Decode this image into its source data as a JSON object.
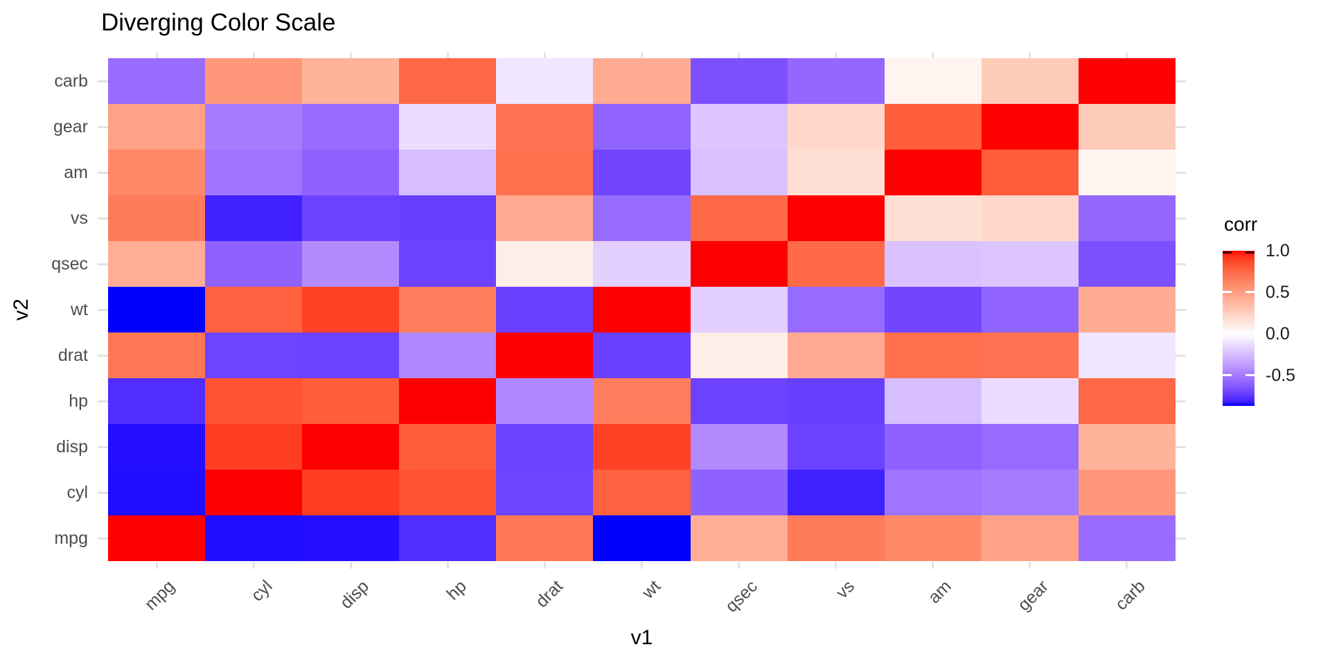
{
  "chart_data": {
    "type": "heatmap",
    "title": "Diverging Color Scale",
    "xlabel": "v1",
    "ylabel": "v2",
    "x_categories": [
      "mpg",
      "cyl",
      "disp",
      "hp",
      "drat",
      "wt",
      "qsec",
      "vs",
      "am",
      "gear",
      "carb"
    ],
    "y_categories_bottom_to_top": [
      "mpg",
      "cyl",
      "disp",
      "hp",
      "drat",
      "wt",
      "qsec",
      "vs",
      "am",
      "gear",
      "carb"
    ],
    "matrix_rows_bottom_to_top": [
      [
        1,
        -0.852,
        -0.848,
        -0.776,
        0.681,
        -0.868,
        0.419,
        0.664,
        0.6,
        0.48,
        -0.551
      ],
      [
        -0.852,
        1,
        0.902,
        0.832,
        -0.7,
        0.782,
        -0.591,
        -0.811,
        -0.523,
        -0.493,
        0.527
      ],
      [
        -0.848,
        0.902,
        1,
        0.791,
        -0.71,
        0.888,
        -0.434,
        -0.71,
        -0.591,
        -0.556,
        0.395
      ],
      [
        -0.776,
        0.832,
        0.791,
        1,
        -0.449,
        0.659,
        -0.708,
        -0.723,
        -0.243,
        -0.126,
        0.75
      ],
      [
        0.681,
        -0.7,
        -0.71,
        -0.449,
        1,
        -0.712,
        0.091,
        0.44,
        0.713,
        0.7,
        -0.091
      ],
      [
        -0.868,
        0.782,
        0.888,
        0.659,
        -0.712,
        1,
        -0.175,
        -0.555,
        -0.692,
        -0.583,
        0.428
      ],
      [
        0.419,
        -0.591,
        -0.434,
        -0.708,
        0.091,
        -0.175,
        1,
        0.745,
        -0.23,
        -0.213,
        -0.656
      ],
      [
        0.664,
        -0.811,
        -0.71,
        -0.723,
        0.44,
        -0.555,
        0.745,
        1,
        0.168,
        0.206,
        -0.57
      ],
      [
        0.6,
        -0.523,
        -0.591,
        -0.243,
        0.713,
        -0.692,
        -0.23,
        0.168,
        1,
        0.794,
        0.058
      ],
      [
        0.48,
        -0.493,
        -0.556,
        -0.126,
        0.7,
        -0.583,
        -0.213,
        0.206,
        0.794,
        1,
        0.274
      ],
      [
        -0.551,
        0.527,
        0.395,
        0.75,
        -0.091,
        0.428,
        -0.656,
        -0.57,
        0.058,
        0.274,
        1
      ]
    ],
    "legend_title": "corr",
    "legend_ticks": [
      {
        "label": "1.0",
        "value": 1.0
      },
      {
        "label": "0.5",
        "value": 0.5
      },
      {
        "label": "0.0",
        "value": 0.0
      },
      {
        "label": "-0.5",
        "value": -0.5
      }
    ],
    "color_scale": {
      "low": "#0000FF",
      "mid": "#FFFFFF",
      "high": "#FF0000",
      "interpolation": "CIE-Lab",
      "domain_min": -0.868,
      "domain_mid": 0,
      "domain_max": 1.0
    },
    "grid": false,
    "legend_position": "right"
  }
}
